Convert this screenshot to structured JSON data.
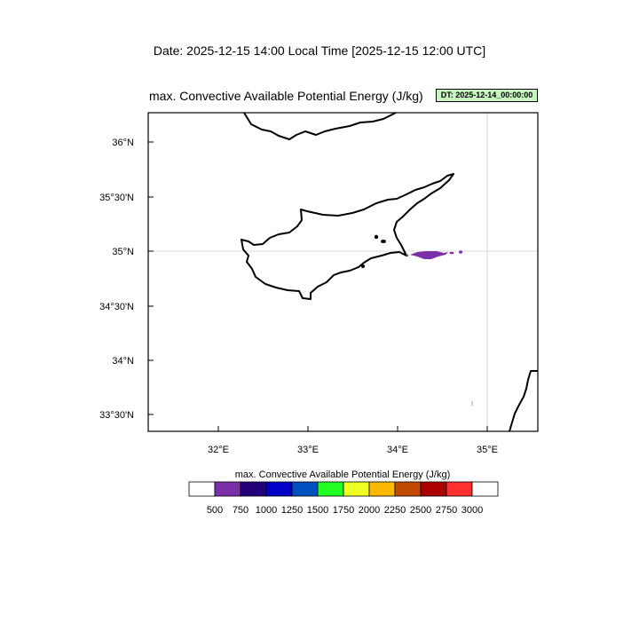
{
  "header": {
    "date_line": "Date: 2025-12-15  14:00 Local Time [2025-12-15  12:00 UTC]",
    "map_title": "max. Convective Available Potential Energy   (J/kg)",
    "dt_badge": "DT: 2025-12-14_00:00:00"
  },
  "axes": {
    "lat_ticks": [
      "36°N",
      "35°30'N",
      "35°N",
      "34°30'N",
      "34°N",
      "33°30'N"
    ],
    "lon_ticks": [
      "32°E",
      "33°E",
      "34°E",
      "35°E"
    ]
  },
  "colorbar": {
    "title": "max. Convective Available Potential Energy  (J/kg)",
    "labels": [
      "500",
      "750",
      "1000",
      "1250",
      "1500",
      "1750",
      "2000",
      "2250",
      "2500",
      "2750",
      "3000"
    ],
    "colors": [
      "#ffffff",
      "#7b2fa8",
      "#23007a",
      "#0000c8",
      "#0050c0",
      "#22ff22",
      "#eeff22",
      "#ffb800",
      "#c04a00",
      "#aa0000",
      "#ff3030",
      "#ffffff"
    ]
  },
  "colors": {
    "cape_shading": "#7b2fa8",
    "coastline": "#000000",
    "gridline": "#cccccc"
  }
}
